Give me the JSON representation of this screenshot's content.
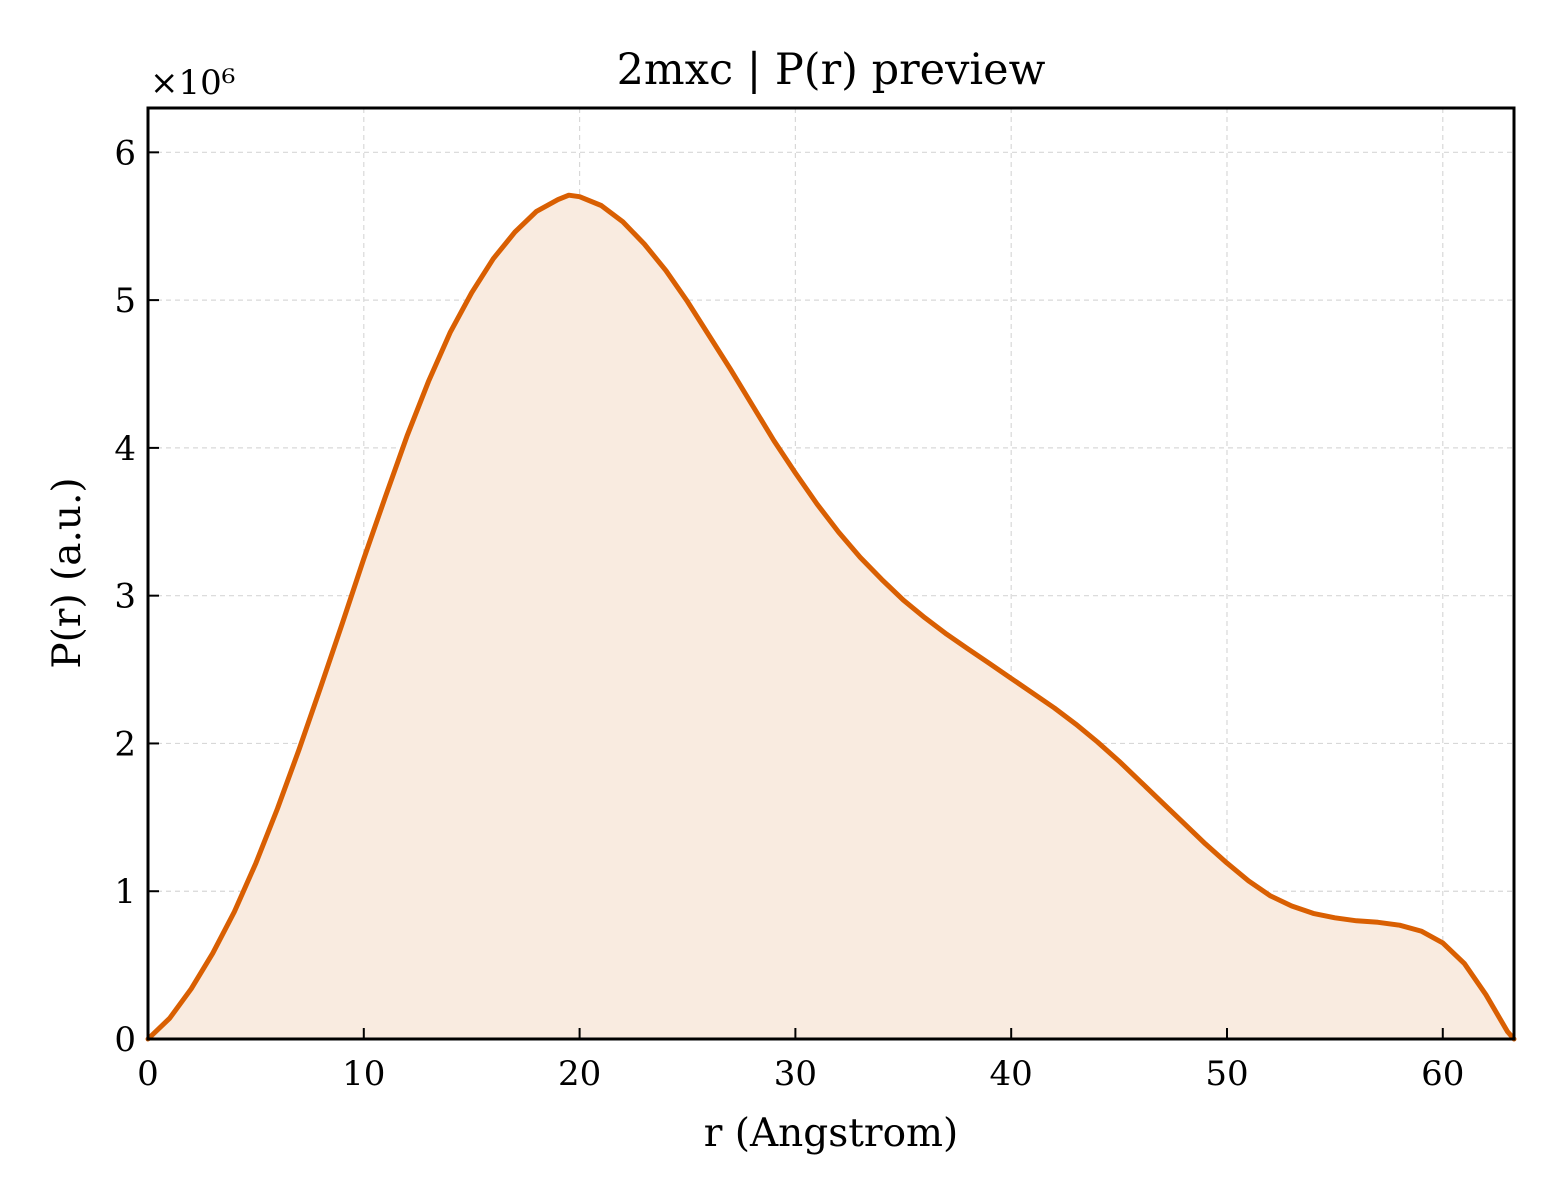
{
  "chart_data": {
    "type": "area",
    "title": "2mxc | P(r) preview",
    "xlabel": "r (Angstrom)",
    "ylabel": "P(r) (a.u.)",
    "y_multiplier_label": "×10⁶",
    "xlim": [
      0,
      63.3
    ],
    "ylim": [
      0,
      6.3
    ],
    "x_ticks": [
      0,
      10,
      20,
      30,
      40,
      50,
      60
    ],
    "y_ticks": [
      0,
      1,
      2,
      3,
      4,
      5,
      6
    ],
    "x_tick_labels": [
      "0",
      "10",
      "20",
      "30",
      "40",
      "50",
      "60"
    ],
    "y_tick_labels": [
      "0",
      "1",
      "2",
      "3",
      "4",
      "5",
      "6"
    ],
    "grid": true,
    "legend": "none",
    "colors": {
      "line": "#d95f02",
      "fill": "#f9ebe0",
      "grid": "#d8d8d8"
    },
    "series": [
      {
        "x": [
          0,
          1,
          2,
          3,
          4,
          5,
          6,
          7,
          8,
          9,
          10,
          11,
          12,
          13,
          14,
          15,
          16,
          17,
          18,
          19,
          19.5,
          20,
          21,
          22,
          23,
          24,
          25,
          26,
          27,
          28,
          29,
          30,
          31,
          32,
          33,
          34,
          35,
          36,
          37,
          38,
          39,
          40,
          41,
          42,
          43,
          44,
          45,
          46,
          47,
          48,
          49,
          50,
          51,
          52,
          53,
          54,
          55,
          56,
          57,
          58,
          59,
          60,
          61,
          62,
          63,
          63.3
        ],
        "y": [
          0,
          0.14,
          0.34,
          0.58,
          0.86,
          1.19,
          1.56,
          1.96,
          2.38,
          2.81,
          3.25,
          3.67,
          4.08,
          4.45,
          4.78,
          5.05,
          5.28,
          5.46,
          5.6,
          5.68,
          5.71,
          5.7,
          5.64,
          5.53,
          5.38,
          5.2,
          4.99,
          4.76,
          4.53,
          4.29,
          4.05,
          3.83,
          3.62,
          3.43,
          3.26,
          3.11,
          2.97,
          2.85,
          2.74,
          2.64,
          2.54,
          2.44,
          2.34,
          2.24,
          2.13,
          2.01,
          1.88,
          1.74,
          1.6,
          1.46,
          1.32,
          1.19,
          1.07,
          0.97,
          0.9,
          0.85,
          0.82,
          0.8,
          0.79,
          0.77,
          0.73,
          0.65,
          0.51,
          0.3,
          0.05,
          0
        ]
      }
    ]
  }
}
